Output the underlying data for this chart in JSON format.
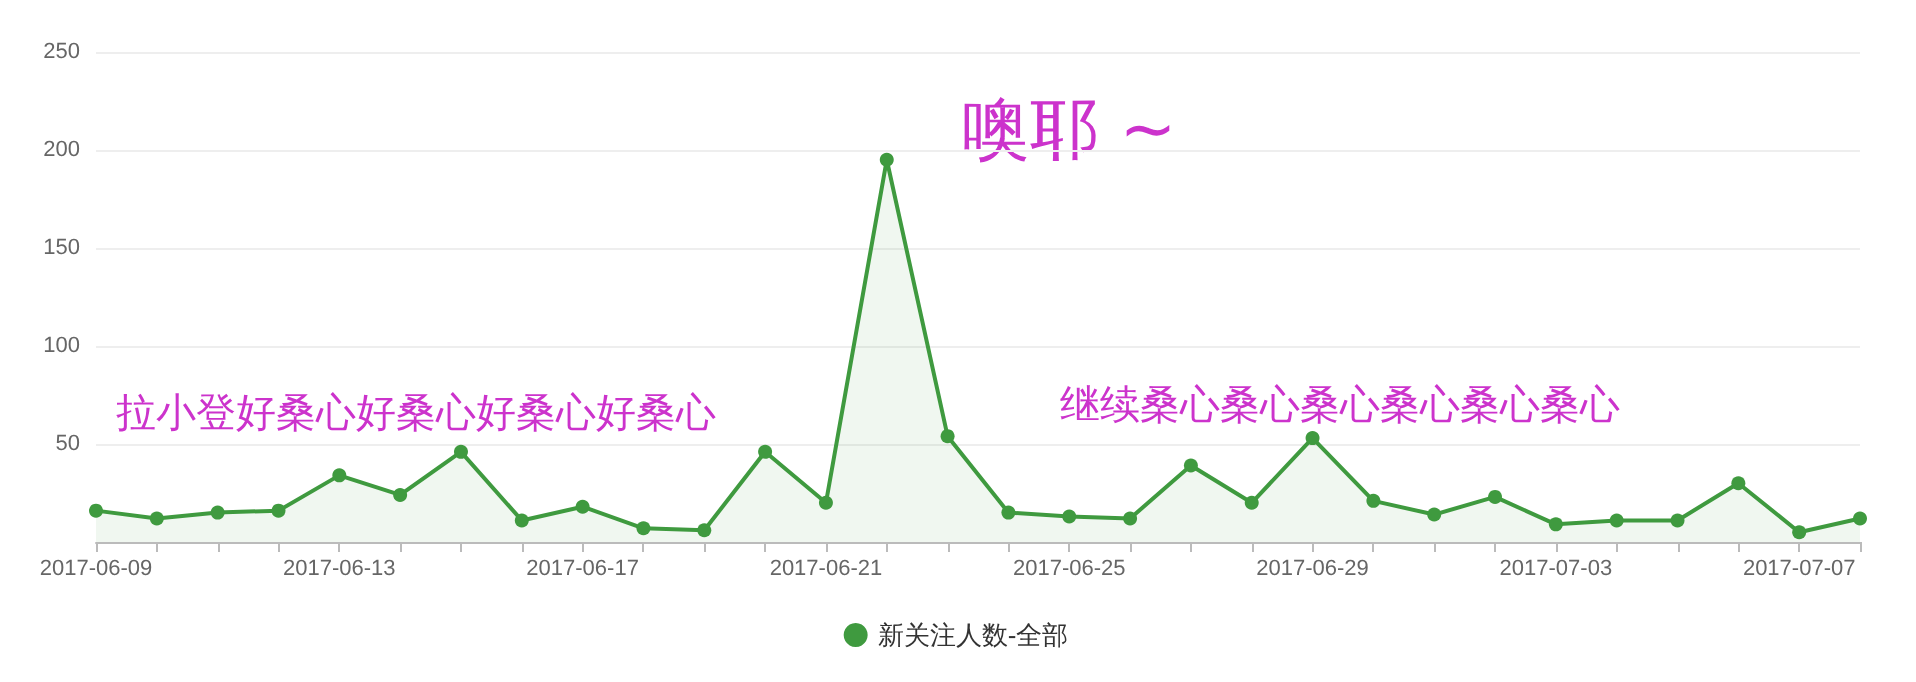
{
  "chart_data": {
    "type": "area",
    "categories": [
      "2017-06-09",
      null,
      null,
      null,
      "2017-06-13",
      null,
      null,
      null,
      "2017-06-17",
      null,
      null,
      null,
      "2017-06-21",
      null,
      null,
      null,
      "2017-06-25",
      null,
      null,
      null,
      "2017-06-29",
      null,
      null,
      null,
      "2017-07-03",
      null,
      null,
      null,
      "2017-07-07",
      null
    ],
    "series": [
      {
        "name": "新关注人数-全部",
        "color": "#3f9a3f",
        "values": [
          16,
          12,
          15,
          16,
          34,
          24,
          46,
          11,
          18,
          7,
          6,
          46,
          20,
          195,
          54,
          15,
          13,
          12,
          39,
          20,
          53,
          21,
          14,
          23,
          9,
          11,
          11,
          30,
          5,
          12
        ]
      }
    ],
    "ylim": [
      0,
      250
    ],
    "yticks": [
      {
        "value": 0,
        "label": null
      },
      50,
      100,
      150,
      200,
      250
    ],
    "grid": "y",
    "legend": "bottom",
    "marker": "circle",
    "line_style": "solid",
    "annotations": [
      "噢耶 ~",
      "拉小登好桑心好桑心好桑心好桑心",
      "继续桑心桑心桑心桑心桑心桑心"
    ]
  }
}
